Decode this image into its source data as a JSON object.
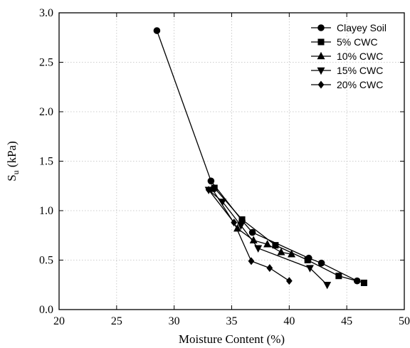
{
  "chart_data": {
    "type": "line",
    "xlabel": "Moisture Content (%)",
    "ylabel": "S",
    "ylabel_sub": "u",
    "ylabel_unit": " (kPa)",
    "xlim": [
      20,
      50
    ],
    "ylim": [
      0.0,
      3.0
    ],
    "xticks": [
      20,
      25,
      30,
      35,
      40,
      45,
      50
    ],
    "xtick_labels": [
      "20",
      "25",
      "30",
      "35",
      "40",
      "45",
      "50"
    ],
    "yticks": [
      0.0,
      0.5,
      1.0,
      1.5,
      2.0,
      2.5,
      3.0
    ],
    "ytick_labels": [
      "0.0",
      "0.5",
      "1.0",
      "1.5",
      "2.0",
      "2.5",
      "3.0"
    ],
    "grid": true,
    "legend_position": "top-right",
    "series": [
      {
        "name": "Clayey Soil",
        "marker": "circle",
        "x": [
          28.5,
          33.2,
          35.9,
          36.8,
          41.7,
          42.8,
          45.9
        ],
        "y": [
          2.82,
          1.3,
          0.9,
          0.78,
          0.52,
          0.47,
          0.29
        ]
      },
      {
        "name": "5% CWC",
        "marker": "square",
        "x": [
          33.5,
          35.9,
          38.8,
          41.6,
          44.3,
          46.5
        ],
        "y": [
          1.23,
          0.91,
          0.65,
          0.5,
          0.34,
          0.27
        ]
      },
      {
        "name": "10% CWC",
        "marker": "triangle-up",
        "x": [
          33.3,
          35.5,
          36.9,
          38.1,
          39.3,
          40.2
        ],
        "y": [
          1.22,
          0.82,
          0.7,
          0.66,
          0.58,
          0.56
        ]
      },
      {
        "name": "15% CWC",
        "marker": "triangle-down",
        "x": [
          33.0,
          34.2,
          35.8,
          37.3,
          41.8,
          43.3
        ],
        "y": [
          1.21,
          1.09,
          0.85,
          0.62,
          0.42,
          0.25
        ]
      },
      {
        "name": "20% CWC",
        "marker": "diamond",
        "x": [
          33.0,
          35.2,
          36.7,
          38.3,
          40.0
        ],
        "y": [
          1.21,
          0.88,
          0.49,
          0.42,
          0.29
        ]
      }
    ]
  }
}
